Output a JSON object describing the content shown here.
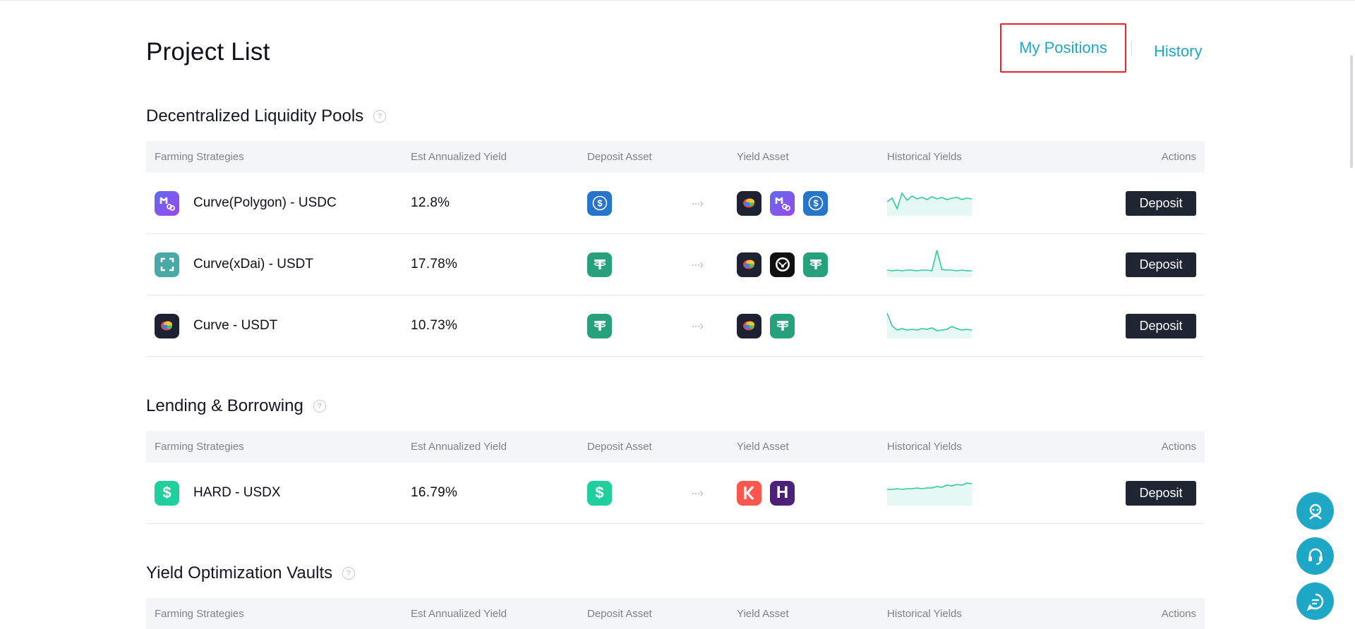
{
  "header": {
    "title": "Project List",
    "tab_positions": "My Positions",
    "tab_history": "History"
  },
  "columns": {
    "strategy": "Farming Strategies",
    "yield": "Est Annualized Yield",
    "deposit": "Deposit Asset",
    "yield_asset": "Yield Asset",
    "history": "Historical Yields",
    "actions": "Actions"
  },
  "sections": [
    {
      "title": "Decentralized Liquidity Pools",
      "rows": [
        {
          "name": "Curve(Polygon) - USDC",
          "yield": "12.8%",
          "deposit_label": "Deposit",
          "icon": "polygon-token-icon",
          "deposit_asset": "usdc-token-icon",
          "yield_assets": [
            "curve-token-icon",
            "polygon-token-icon",
            "usdc-token-icon"
          ],
          "spark": [
            20,
            15,
            30,
            8,
            18,
            12,
            16,
            14,
            17,
            13,
            16,
            14,
            17,
            15,
            14,
            17,
            15,
            16
          ]
        },
        {
          "name": "Curve(xDai) - USDT",
          "yield": "17.78%",
          "deposit_label": "Deposit",
          "icon": "xdai-token-icon",
          "deposit_asset": "usdt-token-icon",
          "yield_assets": [
            "curve-token-icon",
            "gnosis-token-icon",
            "usdt-token-icon"
          ],
          "spark": [
            30,
            31,
            30,
            31,
            30,
            30,
            31,
            30,
            30,
            31,
            2,
            29,
            30,
            30,
            31,
            30,
            31,
            31
          ]
        },
        {
          "name": "Curve - USDT",
          "yield": "10.73%",
          "deposit_label": "Deposit",
          "icon": "curve-token-icon",
          "deposit_asset": "usdt-token-icon",
          "yield_assets": [
            "curve-token-icon",
            "usdt-token-icon"
          ],
          "spark": [
            4,
            22,
            28,
            26,
            28,
            27,
            28,
            26,
            27,
            25,
            29,
            28,
            27,
            23,
            26,
            28,
            27,
            28
          ]
        }
      ]
    },
    {
      "title": "Lending & Borrowing",
      "rows": [
        {
          "name": "HARD - USDX",
          "yield": "16.79%",
          "deposit_label": "Deposit",
          "icon": "usdx-token-icon",
          "deposit_asset": "usdx-token-icon",
          "yield_assets": [
            "kava-token-icon",
            "hard-token-icon"
          ],
          "spark": [
            17,
            17,
            16,
            17,
            16,
            16,
            15,
            16,
            15,
            15,
            13,
            14,
            11,
            12,
            10,
            11,
            8,
            9
          ]
        }
      ]
    },
    {
      "title": "Yield Optimization Vaults",
      "rows": []
    }
  ]
}
